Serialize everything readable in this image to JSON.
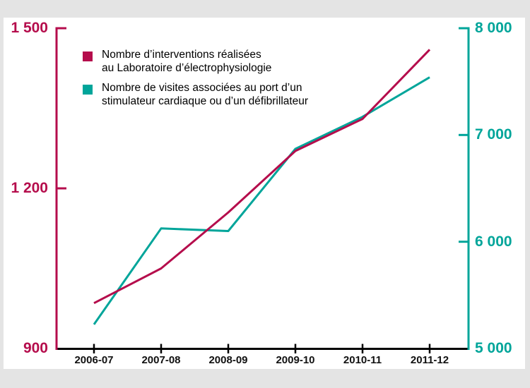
{
  "page": {
    "background_color": "#e4e4e4",
    "panel_color": "#ffffff"
  },
  "legend": {
    "items": [
      {
        "swatch_color": "#b50d4c",
        "line1": "Nombre d’interventions réalisées",
        "line2": "au Laboratoire d’électrophysiologie"
      },
      {
        "swatch_color": "#00a59a",
        "line1": "Nombre de visites associées au port d’un",
        "line2": "stimulateur cardiaque ou d’un défibrillateur"
      }
    ]
  },
  "chart_data": {
    "type": "line",
    "categories": [
      "2006-07",
      "2007-08",
      "2008-09",
      "2009-10",
      "2010-11",
      "2011-12"
    ],
    "series": [
      {
        "name": "Nombre d’interventions réalisées au Laboratoire d’électrophysiologie",
        "axis": "left",
        "color": "#b50d4c",
        "values": [
          985,
          1050,
          1155,
          1270,
          1330,
          1460
        ]
      },
      {
        "name": "Nombre de visites associées au port d’un stimulateur cardiaque ou d’un défibrillateur",
        "axis": "right",
        "color": "#00a59a",
        "values": [
          5225,
          6125,
          6100,
          6870,
          7170,
          7540
        ]
      }
    ],
    "left_axis": {
      "color": "#b50d4c",
      "min": 900,
      "max": 1500,
      "tick_values": [
        1500,
        1200,
        900
      ],
      "tick_labels": [
        "1 500",
        "1 200",
        "900"
      ]
    },
    "right_axis": {
      "color": "#00a59a",
      "min": 5000,
      "max": 8000,
      "tick_values": [
        8000,
        7000,
        6000,
        5000
      ],
      "tick_labels": [
        "8 000",
        "7 000",
        "6 000",
        "5 000"
      ]
    },
    "x_axis_color": "#000000",
    "grid": false,
    "legend_position": "top-left"
  }
}
